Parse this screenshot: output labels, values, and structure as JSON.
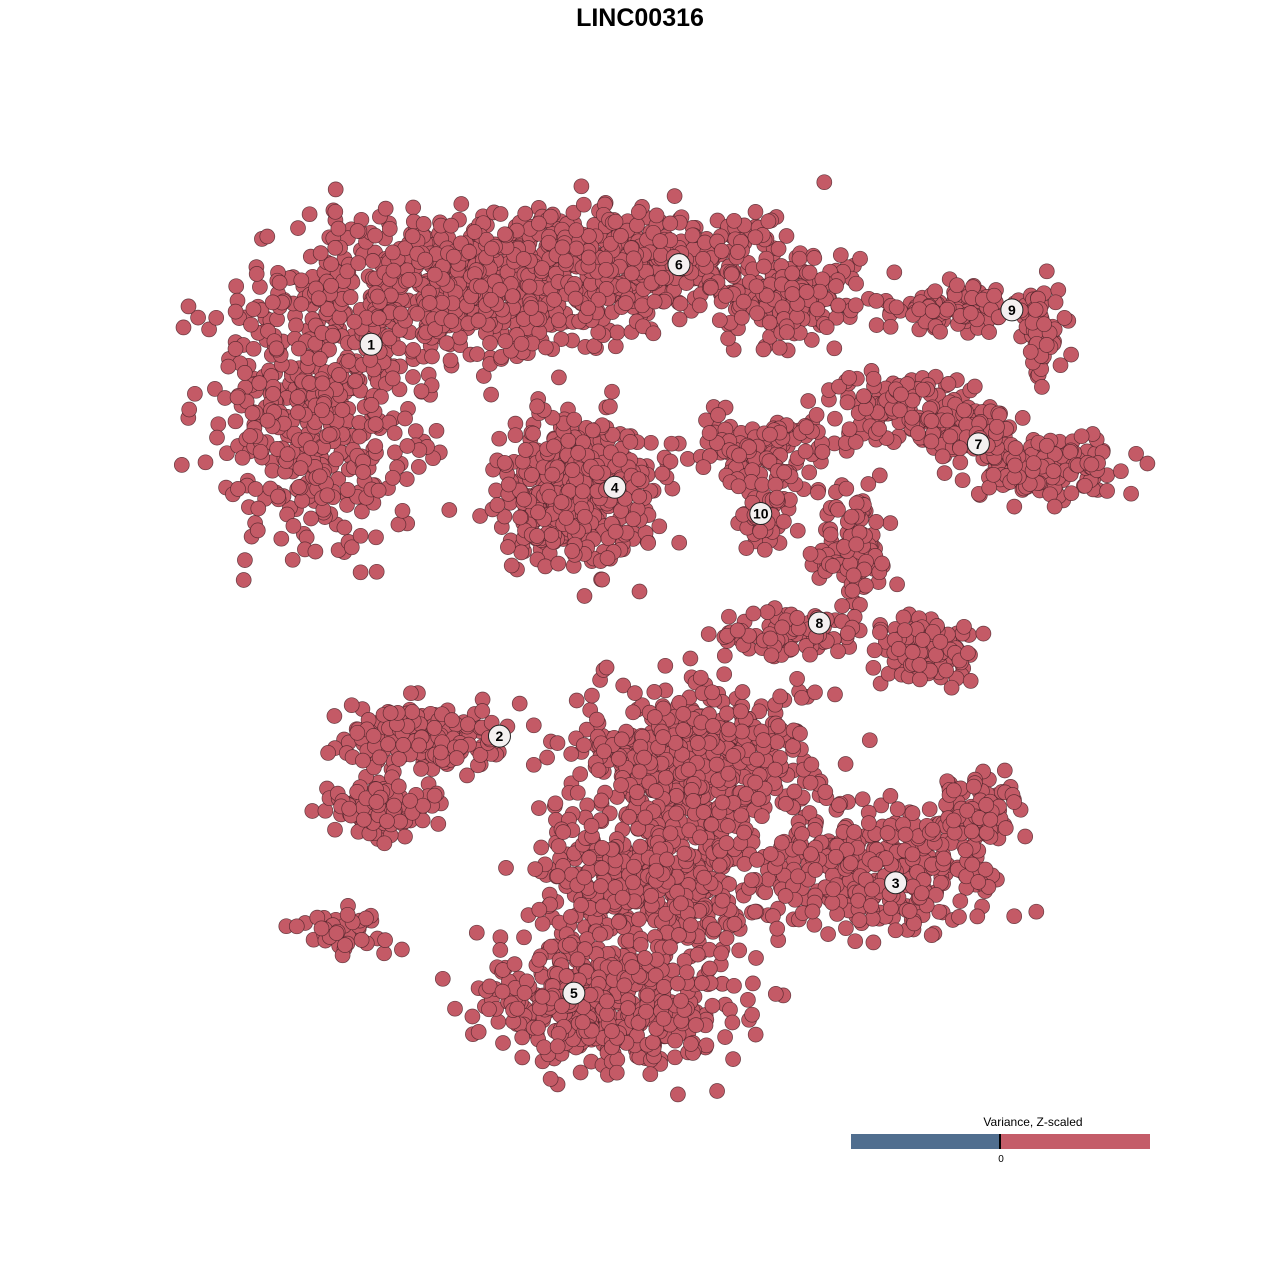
{
  "chart_data": {
    "type": "scatter",
    "title": "LINC00316",
    "xlabel": "",
    "ylabel": "",
    "axes_visible": false,
    "grid": false,
    "point_color": "#c45a66",
    "point_stroke": "#4a2228",
    "clusters": [
      {
        "label": "1",
        "x": -31.6,
        "y": 32.4
      },
      {
        "label": "2",
        "x": -17.8,
        "y": -10.9
      },
      {
        "label": "3",
        "x": 24.8,
        "y": -27.1
      },
      {
        "label": "4",
        "x": -5.4,
        "y": 16.6
      },
      {
        "label": "5",
        "x": -9.8,
        "y": -39.3
      },
      {
        "label": "6",
        "x": 1.5,
        "y": 41.2
      },
      {
        "label": "7",
        "x": 33.7,
        "y": 21.4
      },
      {
        "label": "8",
        "x": 16.6,
        "y": 1.6
      },
      {
        "label": "9",
        "x": 37.3,
        "y": 36.2
      },
      {
        "label": "10",
        "x": 10.3,
        "y": 13.7
      }
    ],
    "legend": {
      "title": "Variance, Z-scaled",
      "placement": "bottom-right",
      "low_color": "#506e8f",
      "high_color": "#c45d69",
      "tick_label": "0"
    }
  }
}
